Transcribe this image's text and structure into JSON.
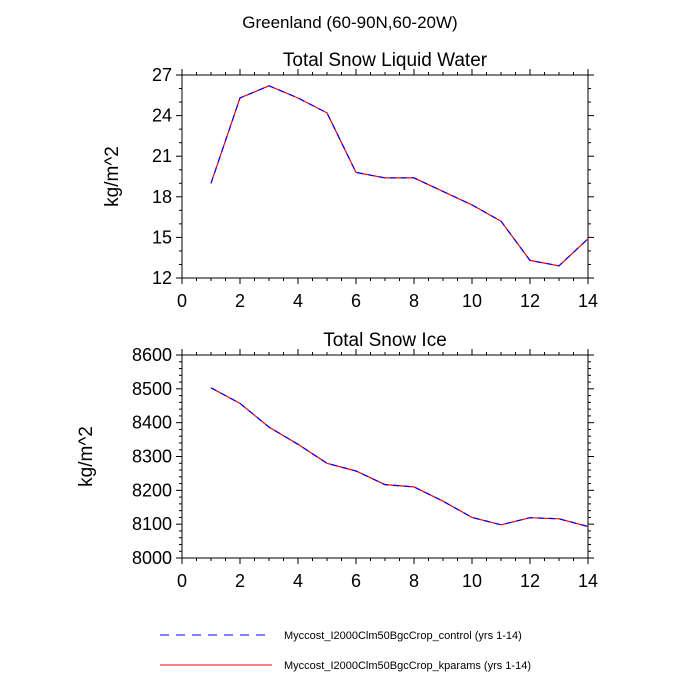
{
  "figure_title": "Greenland (60-90N,60-20W)",
  "legend": {
    "position": "bottom",
    "entries": [
      {
        "label": "Myccost_I2000Clm50BgcCrop_control (yrs 1-14)",
        "color": "#0000ff",
        "style": "dashed"
      },
      {
        "label": "Myccost_I2000Clm50BgcCrop_kparams (yrs 1-14)",
        "color": "#ff0000",
        "style": "solid"
      }
    ]
  },
  "chart_data": [
    {
      "type": "line",
      "title": "Total Snow Liquid Water",
      "xlabel": "",
      "ylabel": "kg/m^2",
      "xlim": [
        0,
        14
      ],
      "ylim": [
        12,
        27
      ],
      "xticks": [
        0,
        2,
        4,
        6,
        8,
        10,
        12,
        14
      ],
      "yticks": [
        12,
        15,
        18,
        21,
        24,
        27
      ],
      "grid": false,
      "x": [
        1,
        2,
        3,
        4,
        5,
        6,
        7,
        8,
        9,
        10,
        11,
        12,
        13,
        14
      ],
      "series": [
        {
          "name": "Myccost_I2000Clm50BgcCrop_control (yrs 1-14)",
          "color": "#0000ff",
          "style": "dashed",
          "values": [
            19.0,
            25.3,
            26.2,
            25.3,
            24.2,
            19.8,
            19.4,
            19.4,
            18.4,
            17.4,
            16.2,
            13.3,
            12.9,
            14.9
          ]
        },
        {
          "name": "Myccost_I2000Clm50BgcCrop_kparams (yrs 1-14)",
          "color": "#ff0000",
          "style": "solid",
          "values": [
            19.0,
            25.3,
            26.2,
            25.3,
            24.2,
            19.8,
            19.4,
            19.4,
            18.4,
            17.4,
            16.2,
            13.3,
            12.9,
            14.9
          ]
        }
      ]
    },
    {
      "type": "line",
      "title": "Total Snow Ice",
      "xlabel": "",
      "ylabel": "kg/m^2",
      "xlim": [
        0,
        14
      ],
      "ylim": [
        8000,
        8600
      ],
      "xticks": [
        0,
        2,
        4,
        6,
        8,
        10,
        12,
        14
      ],
      "yticks": [
        8000,
        8100,
        8200,
        8300,
        8400,
        8500,
        8600
      ],
      "grid": false,
      "x": [
        1,
        2,
        3,
        4,
        5,
        6,
        7,
        8,
        9,
        10,
        11,
        12,
        13,
        14
      ],
      "series": [
        {
          "name": "Myccost_I2000Clm50BgcCrop_control (yrs 1-14)",
          "color": "#0000ff",
          "style": "dashed",
          "values": [
            8503,
            8457,
            8387,
            8336,
            8280,
            8257,
            8217,
            8210,
            8168,
            8120,
            8098,
            8119,
            8116,
            8093
          ]
        },
        {
          "name": "Myccost_I2000Clm50BgcCrop_kparams (yrs 1-14)",
          "color": "#ff0000",
          "style": "solid",
          "values": [
            8503,
            8457,
            8387,
            8336,
            8280,
            8257,
            8217,
            8210,
            8168,
            8120,
            8098,
            8119,
            8116,
            8093
          ]
        }
      ]
    }
  ]
}
